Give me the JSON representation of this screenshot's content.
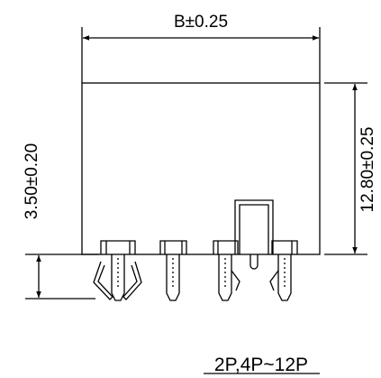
{
  "drawing": {
    "width_dim": "B±0.25",
    "height_dim": "12.80±0.25",
    "pin_dim": "3.50±0.20",
    "variant_label": "2P,4P~12P"
  },
  "colors": {
    "line": "#000000",
    "background": "#ffffff"
  }
}
